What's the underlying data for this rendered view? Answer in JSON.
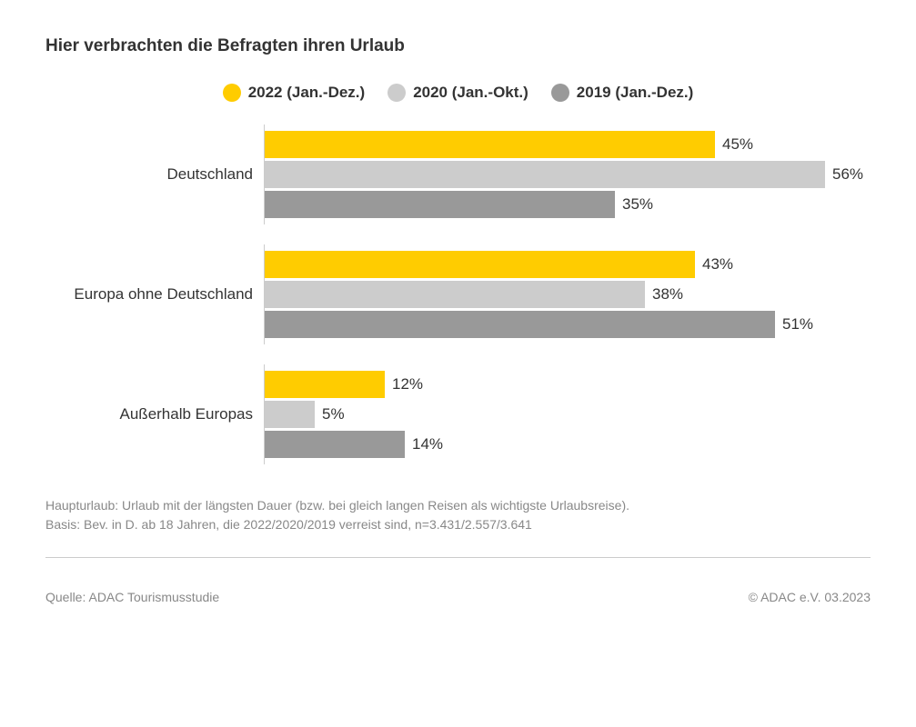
{
  "chart": {
    "type": "bar",
    "title": "Hier verbrachten die Befragten ihren Urlaub",
    "background_color": "#ffffff",
    "title_fontsize": 19,
    "title_color": "#333333",
    "axis_line_color": "#cccccc",
    "label_fontsize": 17,
    "max_value": 60,
    "series": [
      {
        "label": "2022 (Jan.-Dez.)",
        "color": "#ffcc00"
      },
      {
        "label": "2020 (Jan.-Okt.)",
        "color": "#cccccc"
      },
      {
        "label": "2019 (Jan.-Dez.)",
        "color": "#999999"
      }
    ],
    "categories": [
      {
        "label": "Deutschland",
        "values": [
          45,
          56,
          35
        ],
        "display": [
          "45%",
          "56%",
          "35%"
        ]
      },
      {
        "label": "Europa ohne Deutschland",
        "values": [
          43,
          38,
          51
        ],
        "display": [
          "43%",
          "38%",
          "51%"
        ]
      },
      {
        "label": "Außerhalb Europas",
        "values": [
          12,
          5,
          14
        ],
        "display": [
          "12%",
          "5%",
          "14%"
        ]
      }
    ]
  },
  "footnote": {
    "line1": "Haupturlaub: Urlaub mit der längsten Dauer (bzw. bei gleich langen Reisen als wichtigste Urlaubsreise).",
    "line2": "Basis: Bev. in D. ab 18 Jahren, die 2022/2020/2019 verreist sind, n=3.431/2.557/3.641"
  },
  "footer": {
    "source": "Quelle: ADAC Tourismusstudie",
    "copyright": "© ADAC e.V. 03.2023"
  }
}
